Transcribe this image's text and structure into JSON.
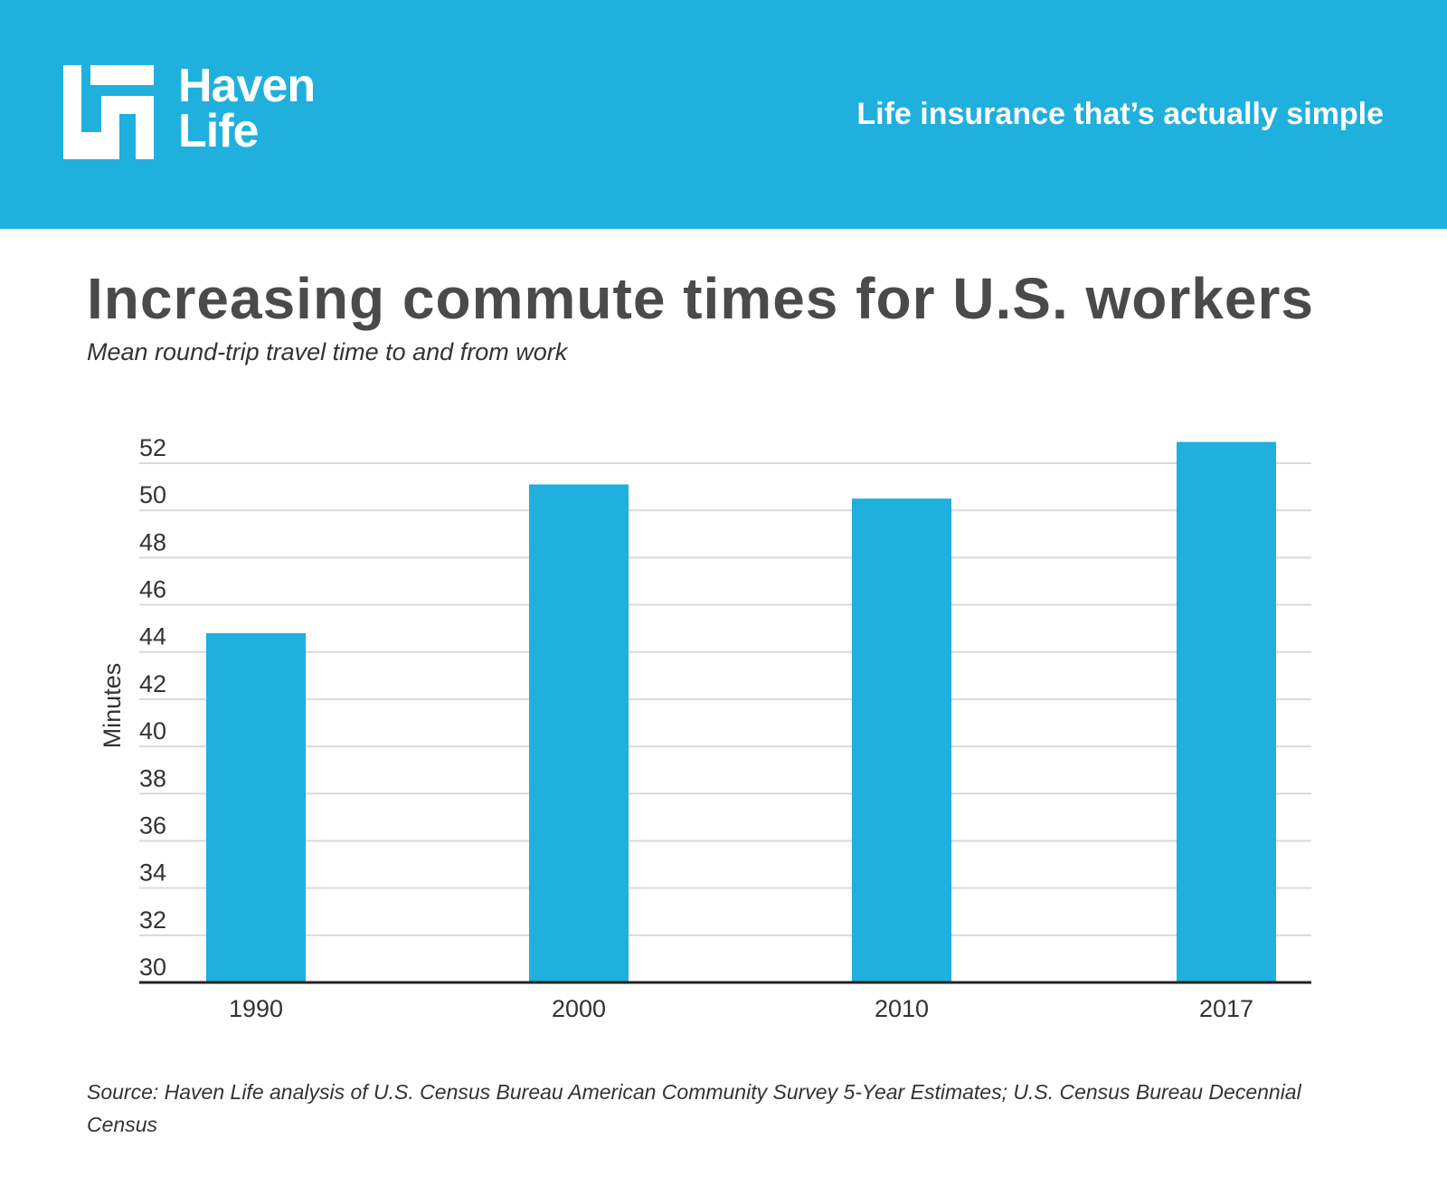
{
  "header": {
    "logo_text_line1": "Haven",
    "logo_text_line2": "Life",
    "tagline": "Life insurance that’s actually simple",
    "background_color": "#1fb0dd"
  },
  "title": "Increasing commute times for U.S. workers",
  "subtitle": "Mean round-trip travel time to and from work",
  "chart_data": {
    "type": "bar",
    "title": "Increasing commute times for U.S. workers",
    "subtitle": "Mean round-trip travel time to and from work",
    "categories": [
      "1990",
      "2000",
      "2010",
      "2017"
    ],
    "values": [
      44.8,
      51.1,
      50.5,
      52.9
    ],
    "xlabel": "",
    "ylabel": "Minutes",
    "ylim": [
      30,
      52
    ],
    "yticks": [
      30,
      32,
      34,
      36,
      38,
      40,
      42,
      44,
      46,
      48,
      50,
      52
    ],
    "grid": true,
    "legend": "none",
    "bar_color": "#1fb0dd"
  },
  "source": "Source: Haven Life analysis of U.S. Census Bureau American Community Survey 5-Year Estimates; U.S. Census Bureau Decennial Census"
}
